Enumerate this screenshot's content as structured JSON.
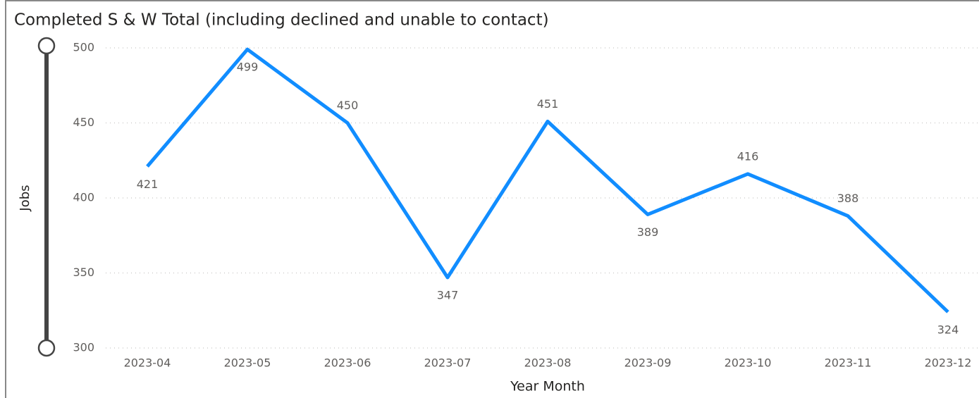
{
  "chart_data": {
    "type": "line",
    "title": "Completed S & W Total (including declined and unable to contact)",
    "x_label": "Year Month",
    "y_label": "Jobs",
    "categories": [
      "2023-04",
      "2023-05",
      "2023-06",
      "2023-07",
      "2023-08",
      "2023-09",
      "2023-10",
      "2023-11",
      "2023-12"
    ],
    "series": [
      {
        "name": "Jobs",
        "color": "#118DFF",
        "values": [
          421,
          499,
          450,
          347,
          451,
          389,
          416,
          388,
          324
        ]
      }
    ],
    "ylim": [
      300,
      500
    ],
    "yticks": [
      300,
      350,
      400,
      450,
      500
    ],
    "grid": true
  }
}
